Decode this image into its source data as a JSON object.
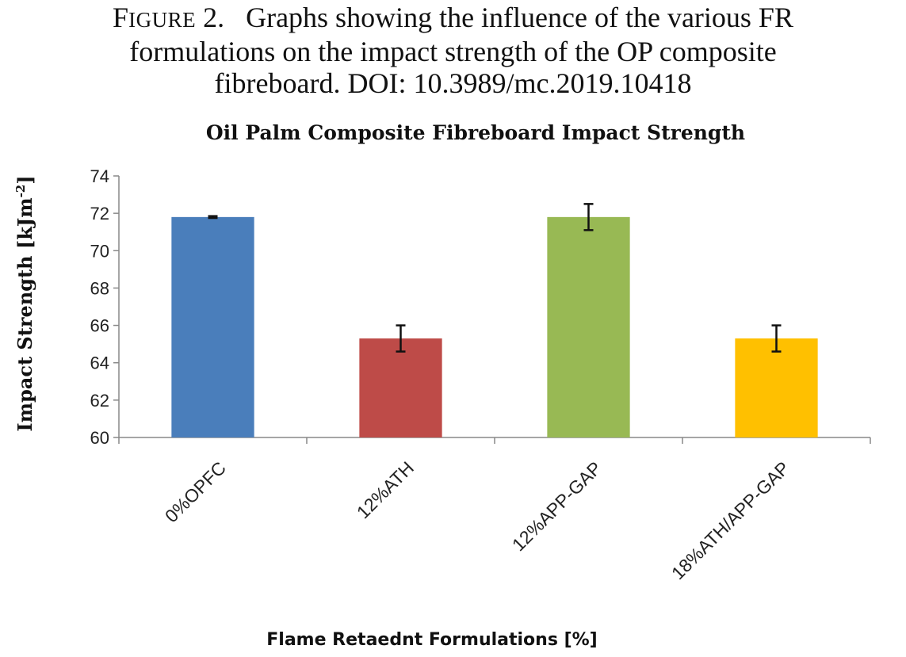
{
  "caption": {
    "label_initial": "F",
    "label_rest": "IGURE",
    "label_number": "2.",
    "line1": "Graphs showing the influence of the various FR",
    "line2": "formulations on the impact strength of the OP composite",
    "line3": "fibreboard. DOI: 10.3989/mc.2019.10418"
  },
  "chart_data": {
    "type": "bar",
    "title": "Oil Palm Composite Fibreboard Impact  Strength",
    "ylabel": "Impact Strength [kJm",
    "ylabel_superscript": "-2",
    "ylabel_close": "]",
    "xlabel": "Flame Retaednt Formulations  [%]",
    "categories": [
      "0%OPFC",
      "12%ATH",
      "12%APP-GAP",
      "18%ATH/APP-GAP"
    ],
    "values": [
      71.8,
      65.3,
      71.8,
      65.3
    ],
    "error": [
      0.05,
      0.7,
      0.7,
      0.7
    ],
    "colors": [
      "#4a7ebb",
      "#be4b48",
      "#98b954",
      "#ffc000"
    ],
    "ylim": [
      60,
      74
    ],
    "yticks": [
      "60",
      "62",
      "64",
      "66",
      "68",
      "70",
      "72",
      "74"
    ],
    "grid": false,
    "legend": "none"
  }
}
